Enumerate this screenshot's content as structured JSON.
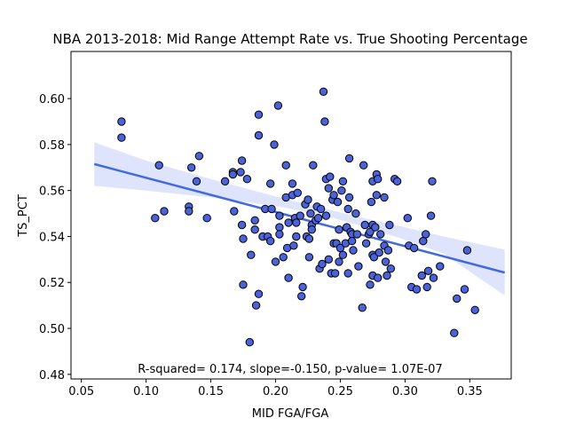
{
  "chart_data": {
    "type": "scatter",
    "title": "NBA 2013-2018: Mid Range Attempt Rate vs. True Shooting Percentage",
    "xlabel": "MID FGA/FGA",
    "ylabel": "TS_PCT",
    "annotation": "R-squared= 0.174, slope=-0.150, p-value= 1.07E-07",
    "xlim": [
      0.042,
      0.382
    ],
    "ylim": [
      0.478,
      0.6205
    ],
    "xticks": [
      {
        "value": 0.05,
        "label": "0.05"
      },
      {
        "value": 0.1,
        "label": "0.10"
      },
      {
        "value": 0.15,
        "label": "0.15"
      },
      {
        "value": 0.2,
        "label": "0.20"
      },
      {
        "value": 0.25,
        "label": "0.25"
      },
      {
        "value": 0.3,
        "label": "0.30"
      },
      {
        "value": 0.35,
        "label": "0.35"
      }
    ],
    "yticks": [
      {
        "value": 0.48,
        "label": "0.48"
      },
      {
        "value": 0.5,
        "label": "0.50"
      },
      {
        "value": 0.52,
        "label": "0.52"
      },
      {
        "value": 0.54,
        "label": "0.54"
      },
      {
        "value": 0.56,
        "label": "0.56"
      },
      {
        "value": 0.58,
        "label": "0.58"
      },
      {
        "value": 0.6,
        "label": "0.60"
      }
    ],
    "grid": false,
    "colors": {
      "point_fill": "#4a63d8",
      "point_edge": "#000000",
      "fit_line": "#4169e1",
      "ci_band": "#c8d2f8"
    },
    "regression": {
      "x": [
        0.06,
        0.377
      ],
      "y": [
        0.5715,
        0.5243
      ]
    },
    "ci_band": {
      "x": [
        0.06,
        0.1,
        0.15,
        0.2,
        0.235,
        0.27,
        0.3,
        0.33,
        0.377
      ],
      "upper": [
        0.581,
        0.573,
        0.565,
        0.5574,
        0.5525,
        0.5478,
        0.544,
        0.54,
        0.5343
      ],
      "lower": [
        0.562,
        0.56,
        0.557,
        0.5532,
        0.5495,
        0.544,
        0.5385,
        0.5325,
        0.5143
      ]
    },
    "points": [
      [
        0.081,
        0.59
      ],
      [
        0.081,
        0.583
      ],
      [
        0.107,
        0.548
      ],
      [
        0.11,
        0.571
      ],
      [
        0.114,
        0.551
      ],
      [
        0.133,
        0.553
      ],
      [
        0.133,
        0.551
      ],
      [
        0.135,
        0.57
      ],
      [
        0.139,
        0.564
      ],
      [
        0.141,
        0.575
      ],
      [
        0.147,
        0.548
      ],
      [
        0.161,
        0.564
      ],
      [
        0.167,
        0.568
      ],
      [
        0.167,
        0.567
      ],
      [
        0.168,
        0.551
      ],
      [
        0.173,
        0.568
      ],
      [
        0.174,
        0.573
      ],
      [
        0.174,
        0.545
      ],
      [
        0.175,
        0.539
      ],
      [
        0.175,
        0.519
      ],
      [
        0.178,
        0.565
      ],
      [
        0.18,
        0.494
      ],
      [
        0.181,
        0.532
      ],
      [
        0.184,
        0.547
      ],
      [
        0.184,
        0.543
      ],
      [
        0.185,
        0.51
      ],
      [
        0.187,
        0.593
      ],
      [
        0.187,
        0.584
      ],
      [
        0.187,
        0.515
      ],
      [
        0.19,
        0.54
      ],
      [
        0.192,
        0.552
      ],
      [
        0.194,
        0.54
      ],
      [
        0.196,
        0.563
      ],
      [
        0.196,
        0.538
      ],
      [
        0.197,
        0.552
      ],
      [
        0.199,
        0.58
      ],
      [
        0.2,
        0.529
      ],
      [
        0.202,
        0.597
      ],
      [
        0.203,
        0.549
      ],
      [
        0.203,
        0.544
      ],
      [
        0.203,
        0.541
      ],
      [
        0.206,
        0.531
      ],
      [
        0.208,
        0.557
      ],
      [
        0.208,
        0.571
      ],
      [
        0.209,
        0.535
      ],
      [
        0.21,
        0.546
      ],
      [
        0.21,
        0.522
      ],
      [
        0.213,
        0.563
      ],
      [
        0.213,
        0.558
      ],
      [
        0.214,
        0.536
      ],
      [
        0.215,
        0.548
      ],
      [
        0.216,
        0.546
      ],
      [
        0.216,
        0.54
      ],
      [
        0.217,
        0.559
      ],
      [
        0.219,
        0.549
      ],
      [
        0.22,
        0.514
      ],
      [
        0.221,
        0.518
      ],
      [
        0.223,
        0.554
      ],
      [
        0.224,
        0.54
      ],
      [
        0.225,
        0.556
      ],
      [
        0.226,
        0.539
      ],
      [
        0.226,
        0.531
      ],
      [
        0.227,
        0.55
      ],
      [
        0.228,
        0.545
      ],
      [
        0.228,
        0.543
      ],
      [
        0.229,
        0.571
      ],
      [
        0.231,
        0.547
      ],
      [
        0.232,
        0.553
      ],
      [
        0.233,
        0.548
      ],
      [
        0.234,
        0.526
      ],
      [
        0.235,
        0.552
      ],
      [
        0.236,
        0.528
      ],
      [
        0.237,
        0.603
      ],
      [
        0.238,
        0.59
      ],
      [
        0.239,
        0.565
      ],
      [
        0.239,
        0.549
      ],
      [
        0.241,
        0.561
      ],
      [
        0.241,
        0.53
      ],
      [
        0.242,
        0.566
      ],
      [
        0.243,
        0.524
      ],
      [
        0.244,
        0.556
      ],
      [
        0.245,
        0.558
      ],
      [
        0.245,
        0.537
      ],
      [
        0.246,
        0.524
      ],
      [
        0.247,
        0.537
      ],
      [
        0.248,
        0.555
      ],
      [
        0.249,
        0.543
      ],
      [
        0.249,
        0.529
      ],
      [
        0.25,
        0.535
      ],
      [
        0.251,
        0.56
      ],
      [
        0.252,
        0.564
      ],
      [
        0.252,
        0.532
      ],
      [
        0.254,
        0.537
      ],
      [
        0.255,
        0.544
      ],
      [
        0.256,
        0.552
      ],
      [
        0.256,
        0.524
      ],
      [
        0.257,
        0.557
      ],
      [
        0.257,
        0.574
      ],
      [
        0.258,
        0.542
      ],
      [
        0.259,
        0.541
      ],
      [
        0.259,
        0.538
      ],
      [
        0.26,
        0.534
      ],
      [
        0.262,
        0.55
      ],
      [
        0.263,
        0.541
      ],
      [
        0.264,
        0.527
      ],
      [
        0.267,
        0.509
      ],
      [
        0.268,
        0.571
      ],
      [
        0.269,
        0.545
      ],
      [
        0.27,
        0.537
      ],
      [
        0.272,
        0.541
      ],
      [
        0.273,
        0.519
      ],
      [
        0.273,
        0.542
      ],
      [
        0.274,
        0.555
      ],
      [
        0.275,
        0.564
      ],
      [
        0.275,
        0.545
      ],
      [
        0.275,
        0.532
      ],
      [
        0.275,
        0.523
      ],
      [
        0.276,
        0.531
      ],
      [
        0.277,
        0.544
      ],
      [
        0.278,
        0.567
      ],
      [
        0.278,
        0.558
      ],
      [
        0.279,
        0.565
      ],
      [
        0.279,
        0.522
      ],
      [
        0.28,
        0.533
      ],
      [
        0.281,
        0.541
      ],
      [
        0.284,
        0.557
      ],
      [
        0.284,
        0.536
      ],
      [
        0.285,
        0.529
      ],
      [
        0.286,
        0.523
      ],
      [
        0.287,
        0.534
      ],
      [
        0.288,
        0.545
      ],
      [
        0.289,
        0.526
      ],
      [
        0.292,
        0.565
      ],
      [
        0.294,
        0.564
      ],
      [
        0.302,
        0.548
      ],
      [
        0.303,
        0.536
      ],
      [
        0.305,
        0.518
      ],
      [
        0.307,
        0.535
      ],
      [
        0.309,
        0.517
      ],
      [
        0.313,
        0.523
      ],
      [
        0.314,
        0.538
      ],
      [
        0.316,
        0.541
      ],
      [
        0.317,
        0.518
      ],
      [
        0.318,
        0.525
      ],
      [
        0.32,
        0.549
      ],
      [
        0.321,
        0.564
      ],
      [
        0.322,
        0.522
      ],
      [
        0.327,
        0.527
      ],
      [
        0.338,
        0.498
      ],
      [
        0.34,
        0.513
      ],
      [
        0.346,
        0.517
      ],
      [
        0.348,
        0.534
      ],
      [
        0.354,
        0.508
      ]
    ]
  }
}
